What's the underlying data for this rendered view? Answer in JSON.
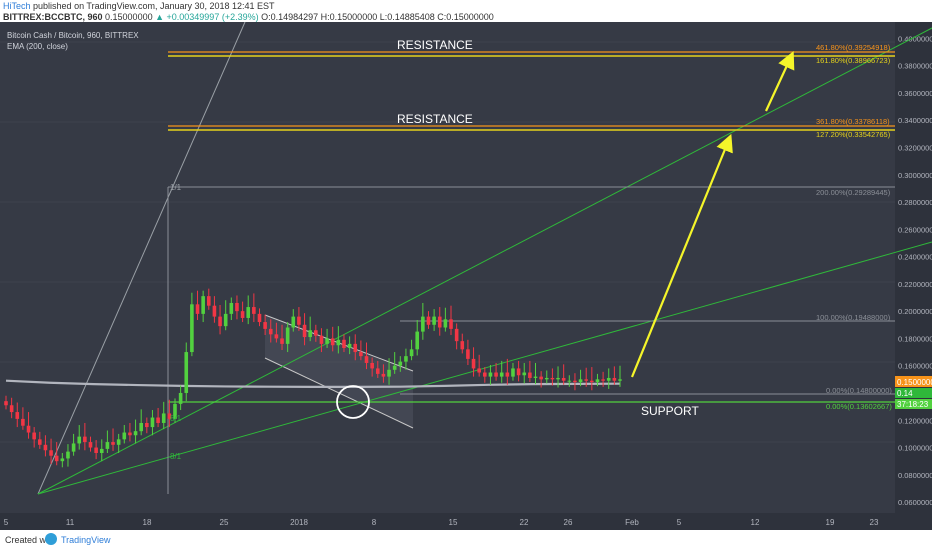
{
  "header": {
    "author": "HiTech",
    "published": "published on TradingView.com, January 30, 2018 12:41 EST",
    "ticker": "BITTREX:BCCBTC, 960",
    "ohlc_open_label": "O:",
    "ohlc_open": "0.15000000",
    "change": "▲ +0.00349997 (+2.39%)",
    "ohlc_rest": "O:0.14984297 H:0.15000000 L:0.14885408 C:0.15000000"
  },
  "legend": {
    "symbol": "Bitcoin Cash / Bitcoin, 960, BITTREX",
    "indicator": "EMA (200, close)"
  },
  "annotations": {
    "resistance_top": "RESISTANCE",
    "resistance_mid": "RESISTANCE",
    "support": "SUPPORT",
    "fib_461": "461.80%(0.39254918)",
    "fib_161": "161.80%(0.38966723)",
    "fib_361": "361.80%(0.33786118)",
    "fib_127": "127.20%(0.33542765)",
    "fib_200": "200.00%(0.29289445)",
    "fib_100": "100.00%(0.19488000)",
    "fib_0a": "0.00%(0.14800000)",
    "fib_0b": "0.00%(0.13602667)",
    "fan_1_1": "1/1",
    "fan_8_1a": "8/1",
    "fan_8_1b": "8/1",
    "price_tag_1": "0.15000000",
    "price_tag_2": "0.14",
    "price_tag_3": "37:18:23"
  },
  "footer": {
    "created_with": "Created with",
    "brand": "TradingView"
  },
  "colors": {
    "background": "#363a45",
    "candle_up": "#52d13f",
    "candle_down": "#f23645",
    "resistance_line": "#e5d21c",
    "fib_orange": "#f7931a",
    "green_line": "#2fb83a",
    "arrow": "#f5f52a",
    "ema": "#b2b5be",
    "support_line": "#52d13f"
  },
  "chart_data": {
    "type": "candlestick",
    "x_tick_labels": [
      "5",
      "11",
      "18",
      "25",
      "2018",
      "8",
      "15",
      "22",
      "26",
      "Feb",
      "5",
      "12",
      "19",
      "23"
    ],
    "y_tick_labels": [
      "0.40000000",
      "0.38000000",
      "0.36000000",
      "0.34000000",
      "0.32000000",
      "0.30000000",
      "0.28000000",
      "0.26000000",
      "0.24000000",
      "0.22000000",
      "0.20000000",
      "0.18000000",
      "0.16000000",
      "0.14000000",
      "0.12000000",
      "0.10000000",
      "0.08000000",
      "0.06000000"
    ],
    "y_range": [
      0.052,
      0.412
    ],
    "close_series": [
      0.131,
      0.126,
      0.121,
      0.116,
      0.111,
      0.106,
      0.102,
      0.098,
      0.094,
      0.09,
      0.092,
      0.097,
      0.103,
      0.108,
      0.104,
      0.1,
      0.096,
      0.099,
      0.104,
      0.102,
      0.106,
      0.111,
      0.109,
      0.112,
      0.118,
      0.115,
      0.122,
      0.118,
      0.125,
      0.121,
      0.132,
      0.14,
      0.17,
      0.205,
      0.198,
      0.211,
      0.204,
      0.196,
      0.189,
      0.198,
      0.206,
      0.2,
      0.195,
      0.203,
      0.198,
      0.192,
      0.187,
      0.183,
      0.18,
      0.176,
      0.188,
      0.196,
      0.19,
      0.181,
      0.186,
      0.182,
      0.176,
      0.18,
      0.175,
      0.179,
      0.173,
      0.176,
      0.17,
      0.167,
      0.162,
      0.158,
      0.154,
      0.152,
      0.157,
      0.16,
      0.163,
      0.167,
      0.172,
      0.185,
      0.196,
      0.19,
      0.196,
      0.188,
      0.194,
      0.187,
      0.178,
      0.172,
      0.165,
      0.158,
      0.155,
      0.152,
      0.155,
      0.152,
      0.155,
      0.152,
      0.158,
      0.153,
      0.155,
      0.151,
      0.152,
      0.15,
      0.151,
      0.15,
      0.151,
      0.149,
      0.149,
      0.148,
      0.15,
      0.149,
      0.148,
      0.15,
      0.149,
      0.151,
      0.149,
      0.15
    ],
    "ema_200": [
      0.149,
      0.1475,
      0.1465,
      0.1458,
      0.1452,
      0.1448,
      0.1446,
      0.1445,
      0.1445,
      0.1446,
      0.1452,
      0.146,
      0.1465,
      0.1467,
      0.1468
    ],
    "resistance_levels": [
      0.3896,
      0.3354
    ],
    "support_level": 0.136,
    "fib_levels": {
      "461.80%": 0.39254918,
      "161.80%": 0.38966723,
      "361.80%": 0.33786118,
      "127.20%": 0.33542765,
      "200.00%": 0.29289445,
      "100.00%": 0.19488,
      "0.00% (a)": 0.148,
      "0.00% (b)": 0.13602667
    }
  }
}
